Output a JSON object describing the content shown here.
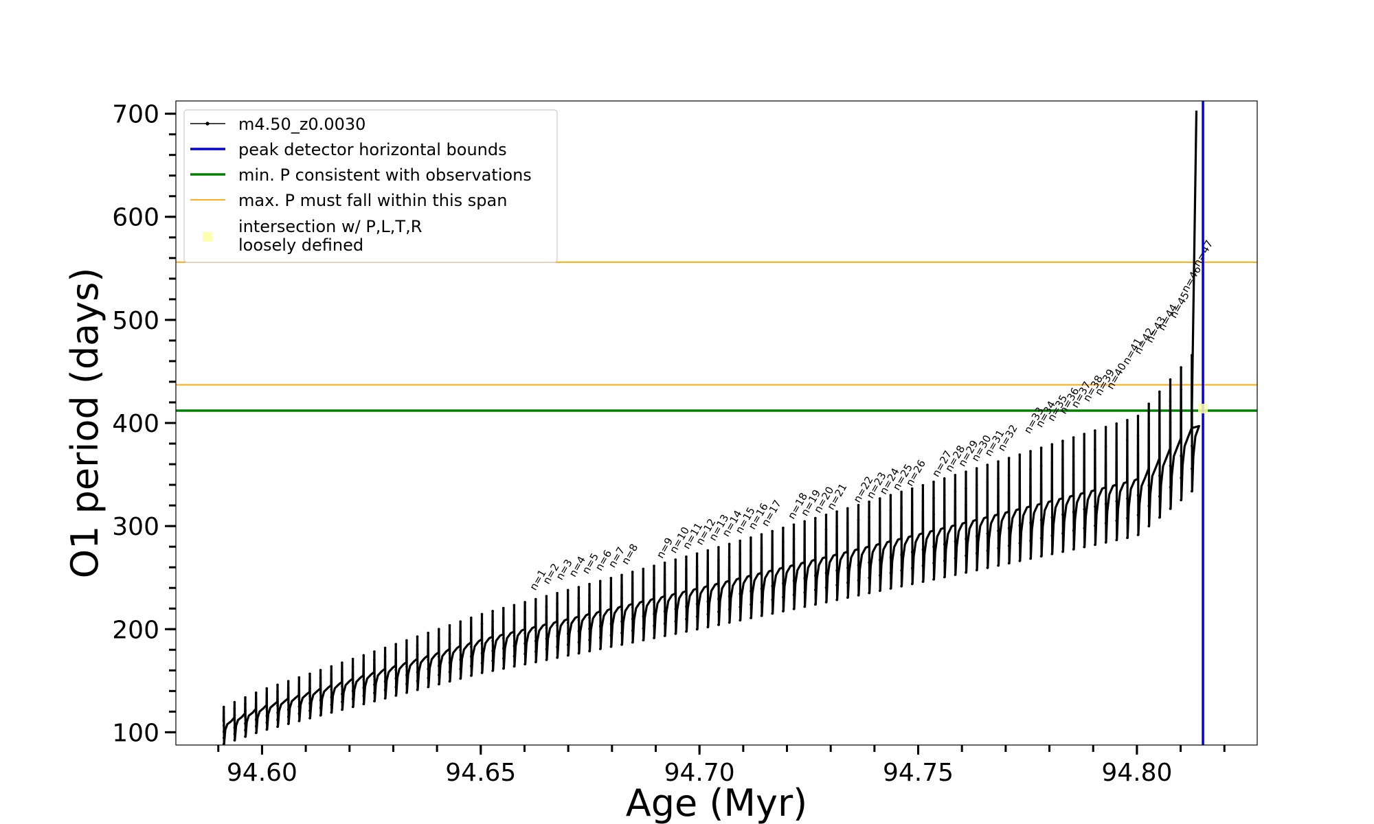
{
  "chart_data": {
    "type": "line",
    "title": "",
    "xlabel": "Age (Myr)",
    "ylabel": "O1 period (days)",
    "xlim": [
      94.5803,
      94.8275
    ],
    "ylim": [
      87.6,
      712.4
    ],
    "xticks": [
      94.6,
      94.65,
      94.7,
      94.75,
      94.8
    ],
    "xtick_labels": [
      "94.60",
      "94.65",
      "94.70",
      "94.75",
      "94.80"
    ],
    "yticks": [
      100,
      200,
      300,
      400,
      500,
      600,
      700
    ],
    "ytick_labels": [
      "100",
      "200",
      "300",
      "400",
      "500",
      "600",
      "700"
    ],
    "legend_position": "top-left",
    "series": [
      {
        "name": "m4.50_z0.0030",
        "color": "#000000",
        "style": "line-with-dots",
        "pulses": {
          "age_start": 94.5912,
          "pulse_spacing_myr": 0.0025,
          "count": 91,
          "note_values": "each thermal pulse: spike peak, sharp drop, recovery to baseline",
          "baseline_end_age": 94.8125
        },
        "sample_points": [
          {
            "x": 94.5912,
            "y": 110
          },
          {
            "x": 94.6,
            "y": 125
          },
          {
            "x": 94.65,
            "y": 190
          },
          {
            "x": 94.7,
            "y": 240
          },
          {
            "x": 94.75,
            "y": 292
          },
          {
            "x": 94.8,
            "y": 345
          },
          {
            "x": 94.8125,
            "y": 395
          },
          {
            "x": 94.8136,
            "y": 703
          }
        ]
      },
      {
        "name": "peak detector horizontal bounds",
        "color": "#0000dd",
        "type": "vline",
        "x": 94.8151
      },
      {
        "name": "min. P consistent with observations",
        "color": "#008000",
        "type": "hline",
        "y": 412
      },
      {
        "name": "max. P must fall within this span",
        "color": "#ffa500",
        "type": "hspan-lines",
        "y": [
          437,
          556
        ]
      },
      {
        "name": "intersection w/ P,L,T,R\nloosely defined",
        "color": "#ffffb0",
        "type": "marker",
        "x": 94.8151,
        "y": 414
      }
    ],
    "annotations": [
      {
        "text": "n=1",
        "x": 94.6625,
        "y": 237
      },
      {
        "text": "n=2",
        "x": 94.6655,
        "y": 243
      },
      {
        "text": "n=3",
        "x": 94.6685,
        "y": 247
      },
      {
        "text": "n=4",
        "x": 94.6715,
        "y": 250
      },
      {
        "text": "n=5",
        "x": 94.6745,
        "y": 253
      },
      {
        "text": "n=6",
        "x": 94.6775,
        "y": 256
      },
      {
        "text": "n=7",
        "x": 94.6805,
        "y": 259
      },
      {
        "text": "n=8",
        "x": 94.6835,
        "y": 262
      },
      {
        "text": "n=9",
        "x": 94.6915,
        "y": 268
      },
      {
        "text": "n=10",
        "x": 94.6945,
        "y": 273
      },
      {
        "text": "n=11",
        "x": 94.6975,
        "y": 277
      },
      {
        "text": "n=12",
        "x": 94.7005,
        "y": 281
      },
      {
        "text": "n=13",
        "x": 94.7035,
        "y": 285
      },
      {
        "text": "n=14",
        "x": 94.7065,
        "y": 289
      },
      {
        "text": "n=15",
        "x": 94.7095,
        "y": 292
      },
      {
        "text": "n=16",
        "x": 94.7125,
        "y": 296
      },
      {
        "text": "n=17",
        "x": 94.7155,
        "y": 299
      },
      {
        "text": "n=18",
        "x": 94.7215,
        "y": 306
      },
      {
        "text": "n=19",
        "x": 94.7245,
        "y": 309
      },
      {
        "text": "n=20",
        "x": 94.7275,
        "y": 312
      },
      {
        "text": "n=21",
        "x": 94.7305,
        "y": 315
      },
      {
        "text": "n=22",
        "x": 94.7365,
        "y": 322
      },
      {
        "text": "n=23",
        "x": 94.7395,
        "y": 326
      },
      {
        "text": "n=24",
        "x": 94.7425,
        "y": 330
      },
      {
        "text": "n=25",
        "x": 94.7455,
        "y": 334
      },
      {
        "text": "n=26",
        "x": 94.7485,
        "y": 338
      },
      {
        "text": "n=27",
        "x": 94.7545,
        "y": 347
      },
      {
        "text": "n=28",
        "x": 94.7575,
        "y": 352
      },
      {
        "text": "n=29",
        "x": 94.7605,
        "y": 357
      },
      {
        "text": "n=30",
        "x": 94.7635,
        "y": 362
      },
      {
        "text": "n=31",
        "x": 94.7665,
        "y": 367
      },
      {
        "text": "n=32",
        "x": 94.7695,
        "y": 372
      },
      {
        "text": "n=33",
        "x": 94.7755,
        "y": 389
      },
      {
        "text": "n=34",
        "x": 94.7782,
        "y": 395
      },
      {
        "text": "n=35",
        "x": 94.7809,
        "y": 401
      },
      {
        "text": "n=36",
        "x": 94.7836,
        "y": 408
      },
      {
        "text": "n=37",
        "x": 94.7863,
        "y": 414
      },
      {
        "text": "n=38",
        "x": 94.789,
        "y": 420
      },
      {
        "text": "n=39",
        "x": 94.7917,
        "y": 426
      },
      {
        "text": "n=40",
        "x": 94.7944,
        "y": 432
      },
      {
        "text": "n=41",
        "x": 94.798,
        "y": 456
      },
      {
        "text": "n=42",
        "x": 94.8007,
        "y": 466
      },
      {
        "text": "n=43",
        "x": 94.8034,
        "y": 477
      },
      {
        "text": "n=44",
        "x": 94.8061,
        "y": 489
      },
      {
        "text": "n=45",
        "x": 94.8088,
        "y": 501
      },
      {
        "text": "n=46",
        "x": 94.8115,
        "y": 526
      },
      {
        "text": "n=47",
        "x": 94.8142,
        "y": 551
      }
    ]
  }
}
